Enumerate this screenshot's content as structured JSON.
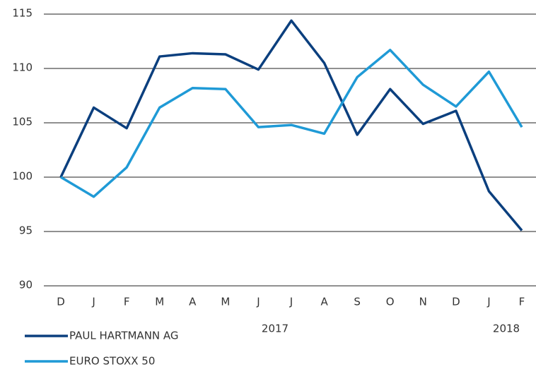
{
  "chart_data": {
    "type": "line",
    "categories": [
      "D",
      "J",
      "F",
      "M",
      "A",
      "M",
      "J",
      "J",
      "A",
      "S",
      "O",
      "N",
      "D",
      "J",
      "F"
    ],
    "series": [
      {
        "name": "PAUL HARTMANN AG",
        "color": "#0b3f7e",
        "values": [
          100,
          106.4,
          104.5,
          111.1,
          111.4,
          111.3,
          109.9,
          114.4,
          110.5,
          103.9,
          108.1,
          104.9,
          106.1,
          98.7,
          95.1
        ]
      },
      {
        "name": "EURO STOXX 50",
        "color": "#1f9ad6",
        "values": [
          100,
          98.2,
          100.9,
          106.4,
          108.2,
          108.1,
          104.6,
          104.8,
          104.0,
          109.2,
          111.7,
          108.5,
          106.5,
          109.7,
          104.6
        ]
      }
    ],
    "annotations": [
      "2017",
      "2018"
    ],
    "ylim": [
      90,
      115
    ],
    "yticks": [
      90,
      95,
      100,
      105,
      110,
      115
    ],
    "grid": true
  }
}
